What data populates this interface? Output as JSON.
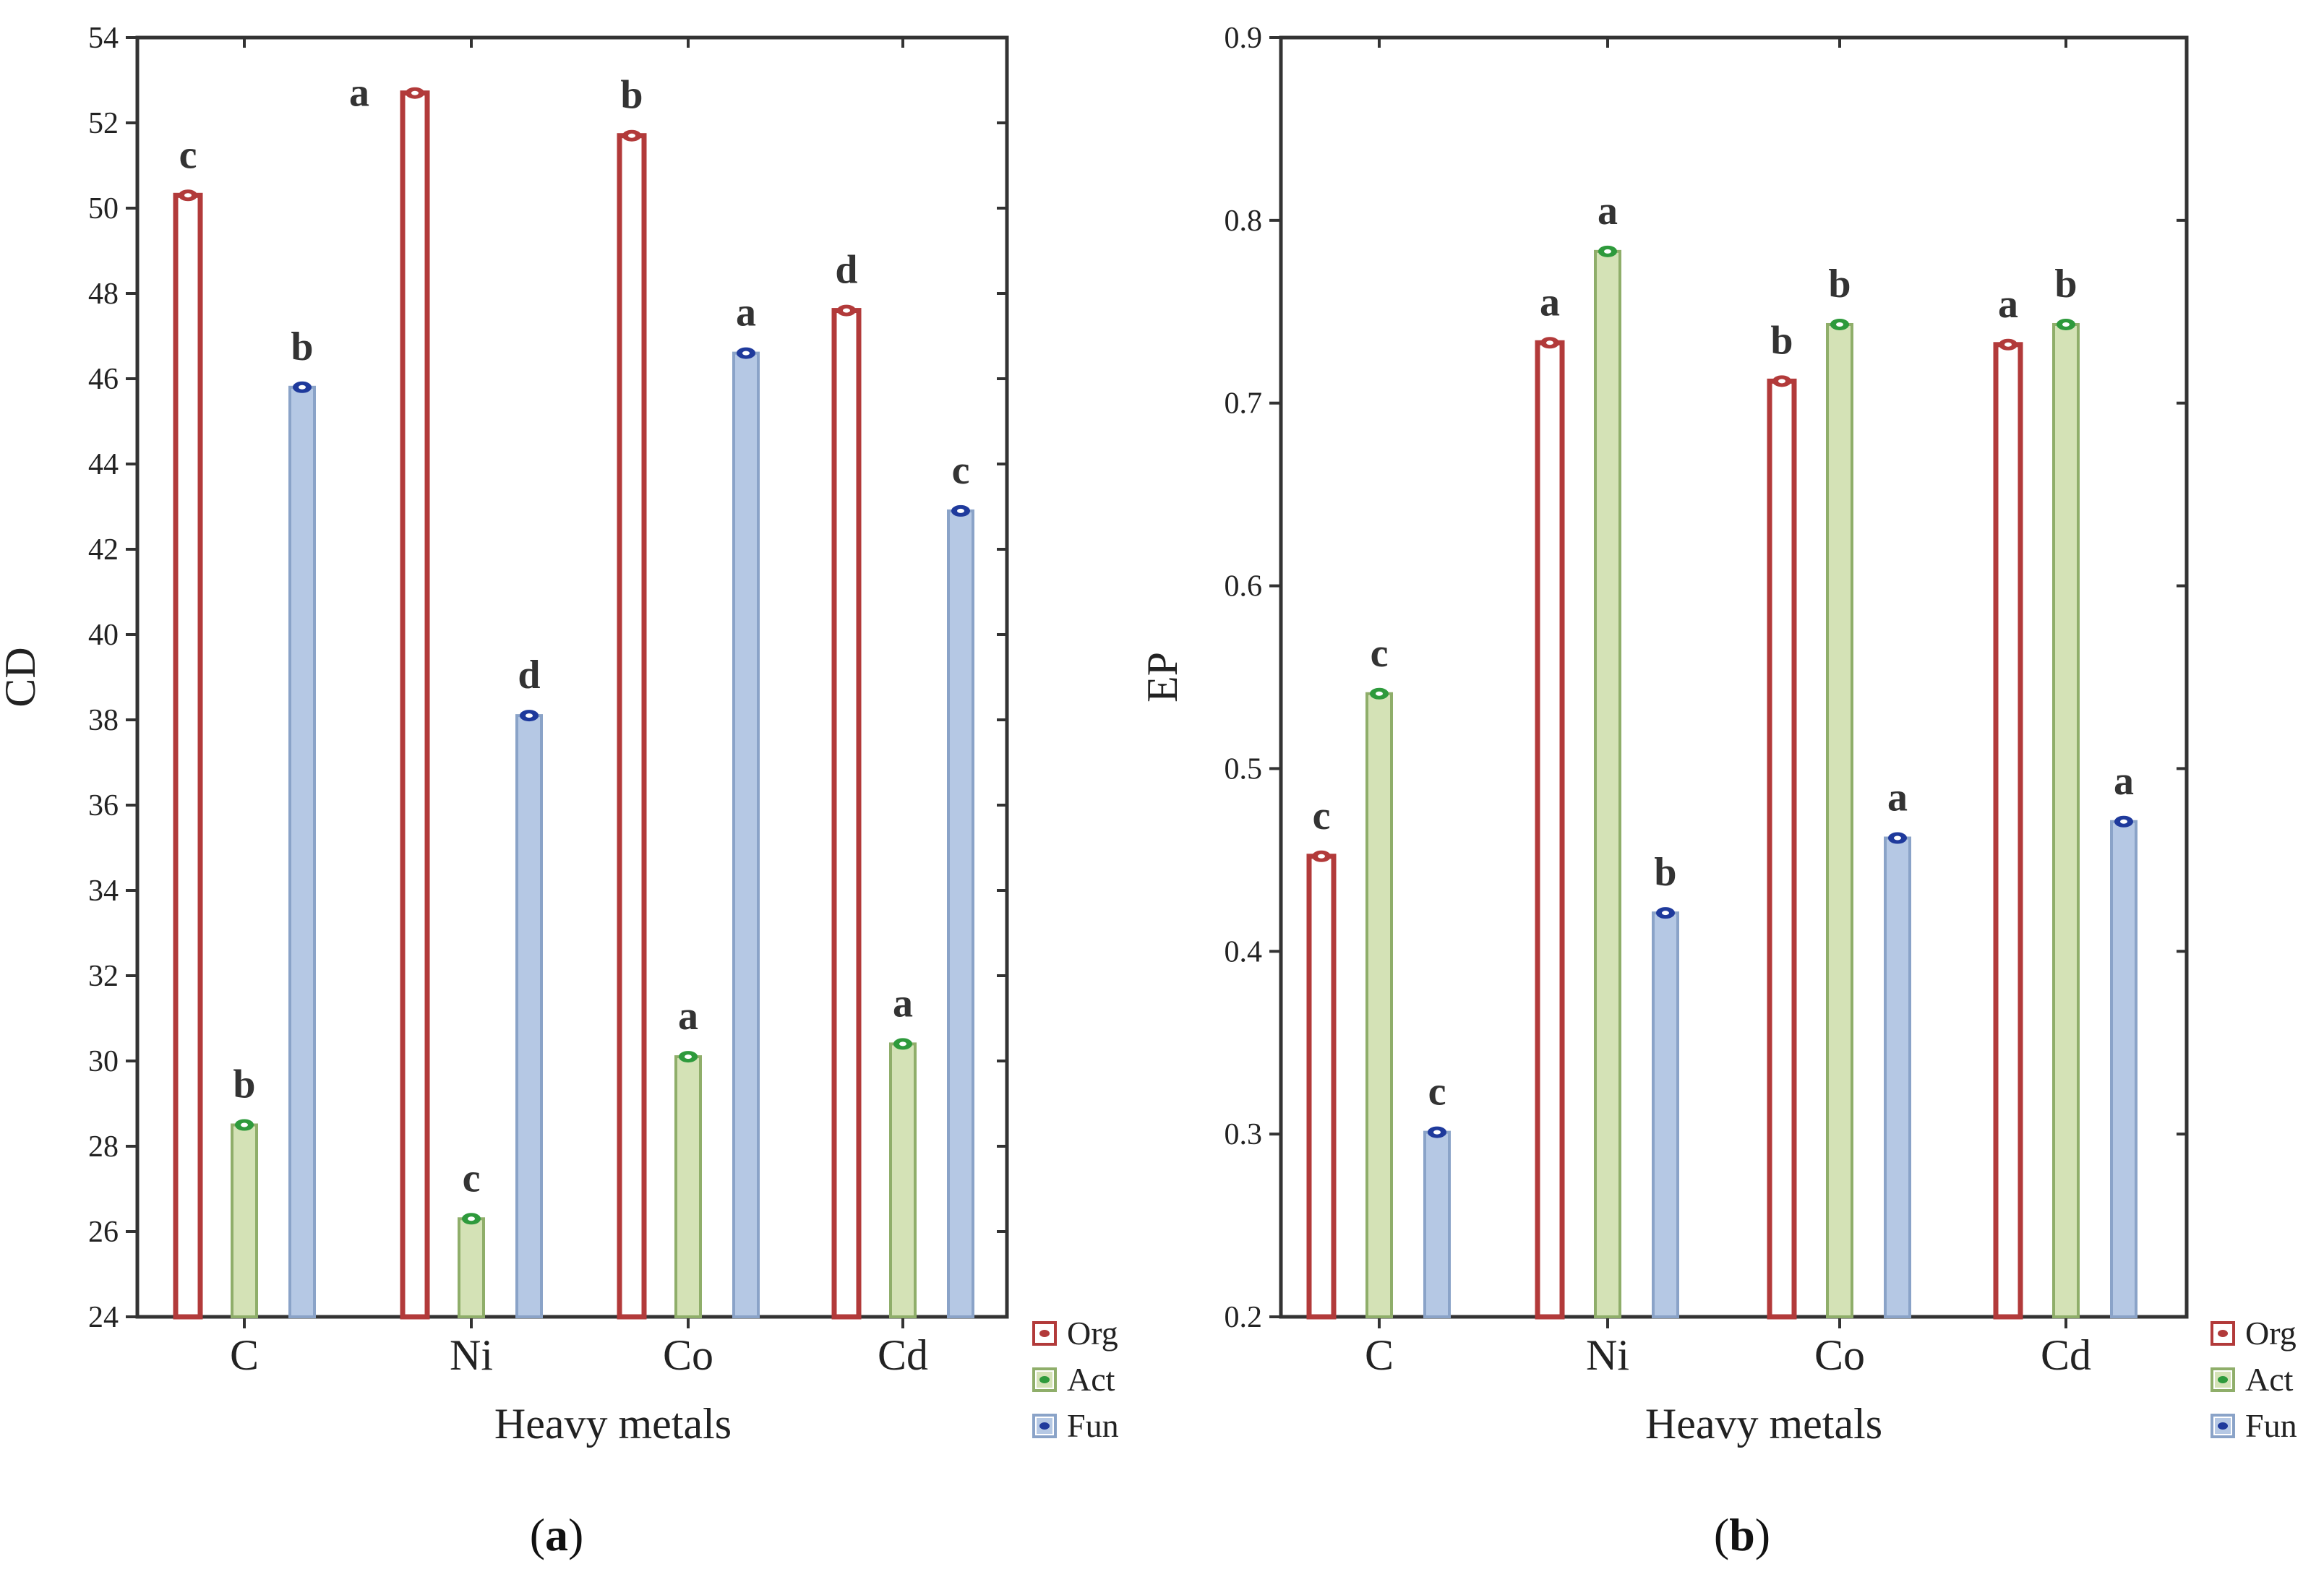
{
  "chart_data": [
    {
      "type": "bar",
      "panel_label_open": "(",
      "panel_label_letter": "a",
      "panel_label_close": ")",
      "categories": [
        "C",
        "Ni",
        "Co",
        "Cd"
      ],
      "xlabel": "Heavy metals",
      "ylabel": "CD",
      "ylim": [
        24,
        54
      ],
      "yticks": [
        "24",
        "26",
        "28",
        "30",
        "32",
        "34",
        "36",
        "38",
        "40",
        "42",
        "44",
        "46",
        "48",
        "50",
        "52",
        "54"
      ],
      "series": [
        {
          "name": "Org",
          "values": [
            50.3,
            52.7,
            51.7,
            47.6
          ],
          "letters": [
            "c",
            "a",
            "b",
            "d"
          ]
        },
        {
          "name": "Act",
          "values": [
            28.5,
            26.3,
            30.1,
            30.4
          ],
          "letters": [
            "b",
            "c",
            "a",
            "a"
          ]
        },
        {
          "name": "Fun",
          "values": [
            45.8,
            38.1,
            46.6,
            42.9
          ],
          "letters": [
            "b",
            "d",
            "a",
            "c"
          ]
        }
      ],
      "legend_position": "right-bottom",
      "grid": false
    },
    {
      "type": "bar",
      "panel_label_open": "(",
      "panel_label_letter": "b",
      "panel_label_close": ")",
      "categories": [
        "C",
        "Ni",
        "Co",
        "Cd"
      ],
      "xlabel": "Heavy metals",
      "ylabel": "EP",
      "ylim": [
        0.2,
        0.9
      ],
      "yticks": [
        "0.2",
        "0.3",
        "0.4",
        "0.5",
        "0.6",
        "0.7",
        "0.8",
        "0.9"
      ],
      "series": [
        {
          "name": "Org",
          "values": [
            0.452,
            0.733,
            0.712,
            0.732
          ],
          "letters": [
            "c",
            "a",
            "b",
            "a"
          ]
        },
        {
          "name": "Act",
          "values": [
            0.541,
            0.783,
            0.743,
            0.743
          ],
          "letters": [
            "c",
            "a",
            "b",
            "b"
          ]
        },
        {
          "name": "Fun",
          "values": [
            0.301,
            0.421,
            0.462,
            0.471
          ],
          "letters": [
            "c",
            "b",
            "a",
            "a"
          ]
        }
      ],
      "legend_position": "right-bottom",
      "grid": false
    }
  ],
  "colors": {
    "org_stroke": "#b23a3a",
    "org_fill": "#ffffff",
    "act_stroke": "#8fae6a",
    "act_fill": "#d4e2b6",
    "act_marker": "#2e9a3c",
    "fun_stroke": "#8aa3c8",
    "fun_fill": "#b5c8e4",
    "fun_marker": "#1f3a9c",
    "axis": "#333333"
  }
}
